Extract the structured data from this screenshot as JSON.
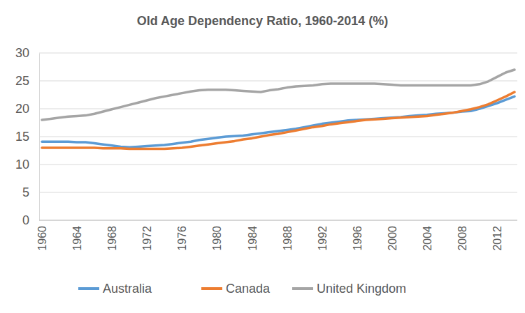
{
  "chart_data": {
    "type": "line",
    "title": "Old Age Dependency Ratio, 1960-2014 (%)",
    "categories": [
      "1960",
      null,
      null,
      null,
      "1964",
      null,
      null,
      null,
      "1968",
      null,
      null,
      null,
      "1972",
      null,
      null,
      null,
      "1976",
      null,
      null,
      null,
      "1980",
      null,
      null,
      null,
      "1984",
      null,
      null,
      null,
      "1988",
      null,
      null,
      null,
      "1992",
      null,
      null,
      null,
      "1996",
      null,
      null,
      null,
      "2000",
      null,
      null,
      null,
      "2004",
      null,
      null,
      null,
      "2008",
      null,
      null,
      null,
      "2012",
      null,
      null
    ],
    "series": [
      {
        "name": "Australia",
        "color": "#5b9bd5",
        "values": [
          14.1,
          14.1,
          14.1,
          14.1,
          14.0,
          14.0,
          13.8,
          13.6,
          13.4,
          13.2,
          13.1,
          13.2,
          13.3,
          13.4,
          13.5,
          13.7,
          13.9,
          14.1,
          14.4,
          14.6,
          14.8,
          15.0,
          15.1,
          15.2,
          15.4,
          15.6,
          15.8,
          16.0,
          16.2,
          16.4,
          16.7,
          17.0,
          17.3,
          17.5,
          17.7,
          17.9,
          18.0,
          18.1,
          18.2,
          18.3,
          18.4,
          18.5,
          18.7,
          18.8,
          18.9,
          19.1,
          19.2,
          19.3,
          19.5,
          19.6,
          20.0,
          20.5,
          21.0,
          21.6,
          22.2
        ]
      },
      {
        "name": "Canada",
        "color": "#ed7d31",
        "values": [
          13.0,
          13.0,
          13.0,
          13.0,
          13.0,
          13.0,
          13.0,
          12.9,
          12.9,
          12.9,
          12.8,
          12.8,
          12.8,
          12.8,
          12.8,
          12.9,
          13.0,
          13.2,
          13.4,
          13.6,
          13.8,
          14.0,
          14.2,
          14.5,
          14.7,
          15.0,
          15.3,
          15.5,
          15.8,
          16.1,
          16.4,
          16.7,
          16.9,
          17.2,
          17.4,
          17.6,
          17.8,
          18.0,
          18.1,
          18.2,
          18.3,
          18.4,
          18.5,
          18.6,
          18.7,
          18.9,
          19.1,
          19.3,
          19.6,
          19.9,
          20.3,
          20.8,
          21.5,
          22.2,
          23.0
        ]
      },
      {
        "name": "United Kingdom",
        "color": "#a5a5a5",
        "values": [
          18.0,
          18.2,
          18.4,
          18.6,
          18.7,
          18.8,
          19.1,
          19.5,
          19.9,
          20.3,
          20.7,
          21.1,
          21.5,
          21.9,
          22.2,
          22.5,
          22.8,
          23.1,
          23.3,
          23.4,
          23.4,
          23.4,
          23.3,
          23.2,
          23.1,
          23.0,
          23.3,
          23.5,
          23.8,
          24.0,
          24.1,
          24.2,
          24.4,
          24.5,
          24.5,
          24.5,
          24.5,
          24.5,
          24.5,
          24.4,
          24.3,
          24.2,
          24.2,
          24.2,
          24.2,
          24.2,
          24.2,
          24.2,
          24.2,
          24.2,
          24.4,
          24.9,
          25.7,
          26.5,
          27.0
        ]
      }
    ],
    "ylim": [
      0,
      30
    ],
    "yticks": [
      0,
      5,
      10,
      15,
      20,
      25,
      30
    ],
    "grid": true,
    "legend": "bottom"
  }
}
